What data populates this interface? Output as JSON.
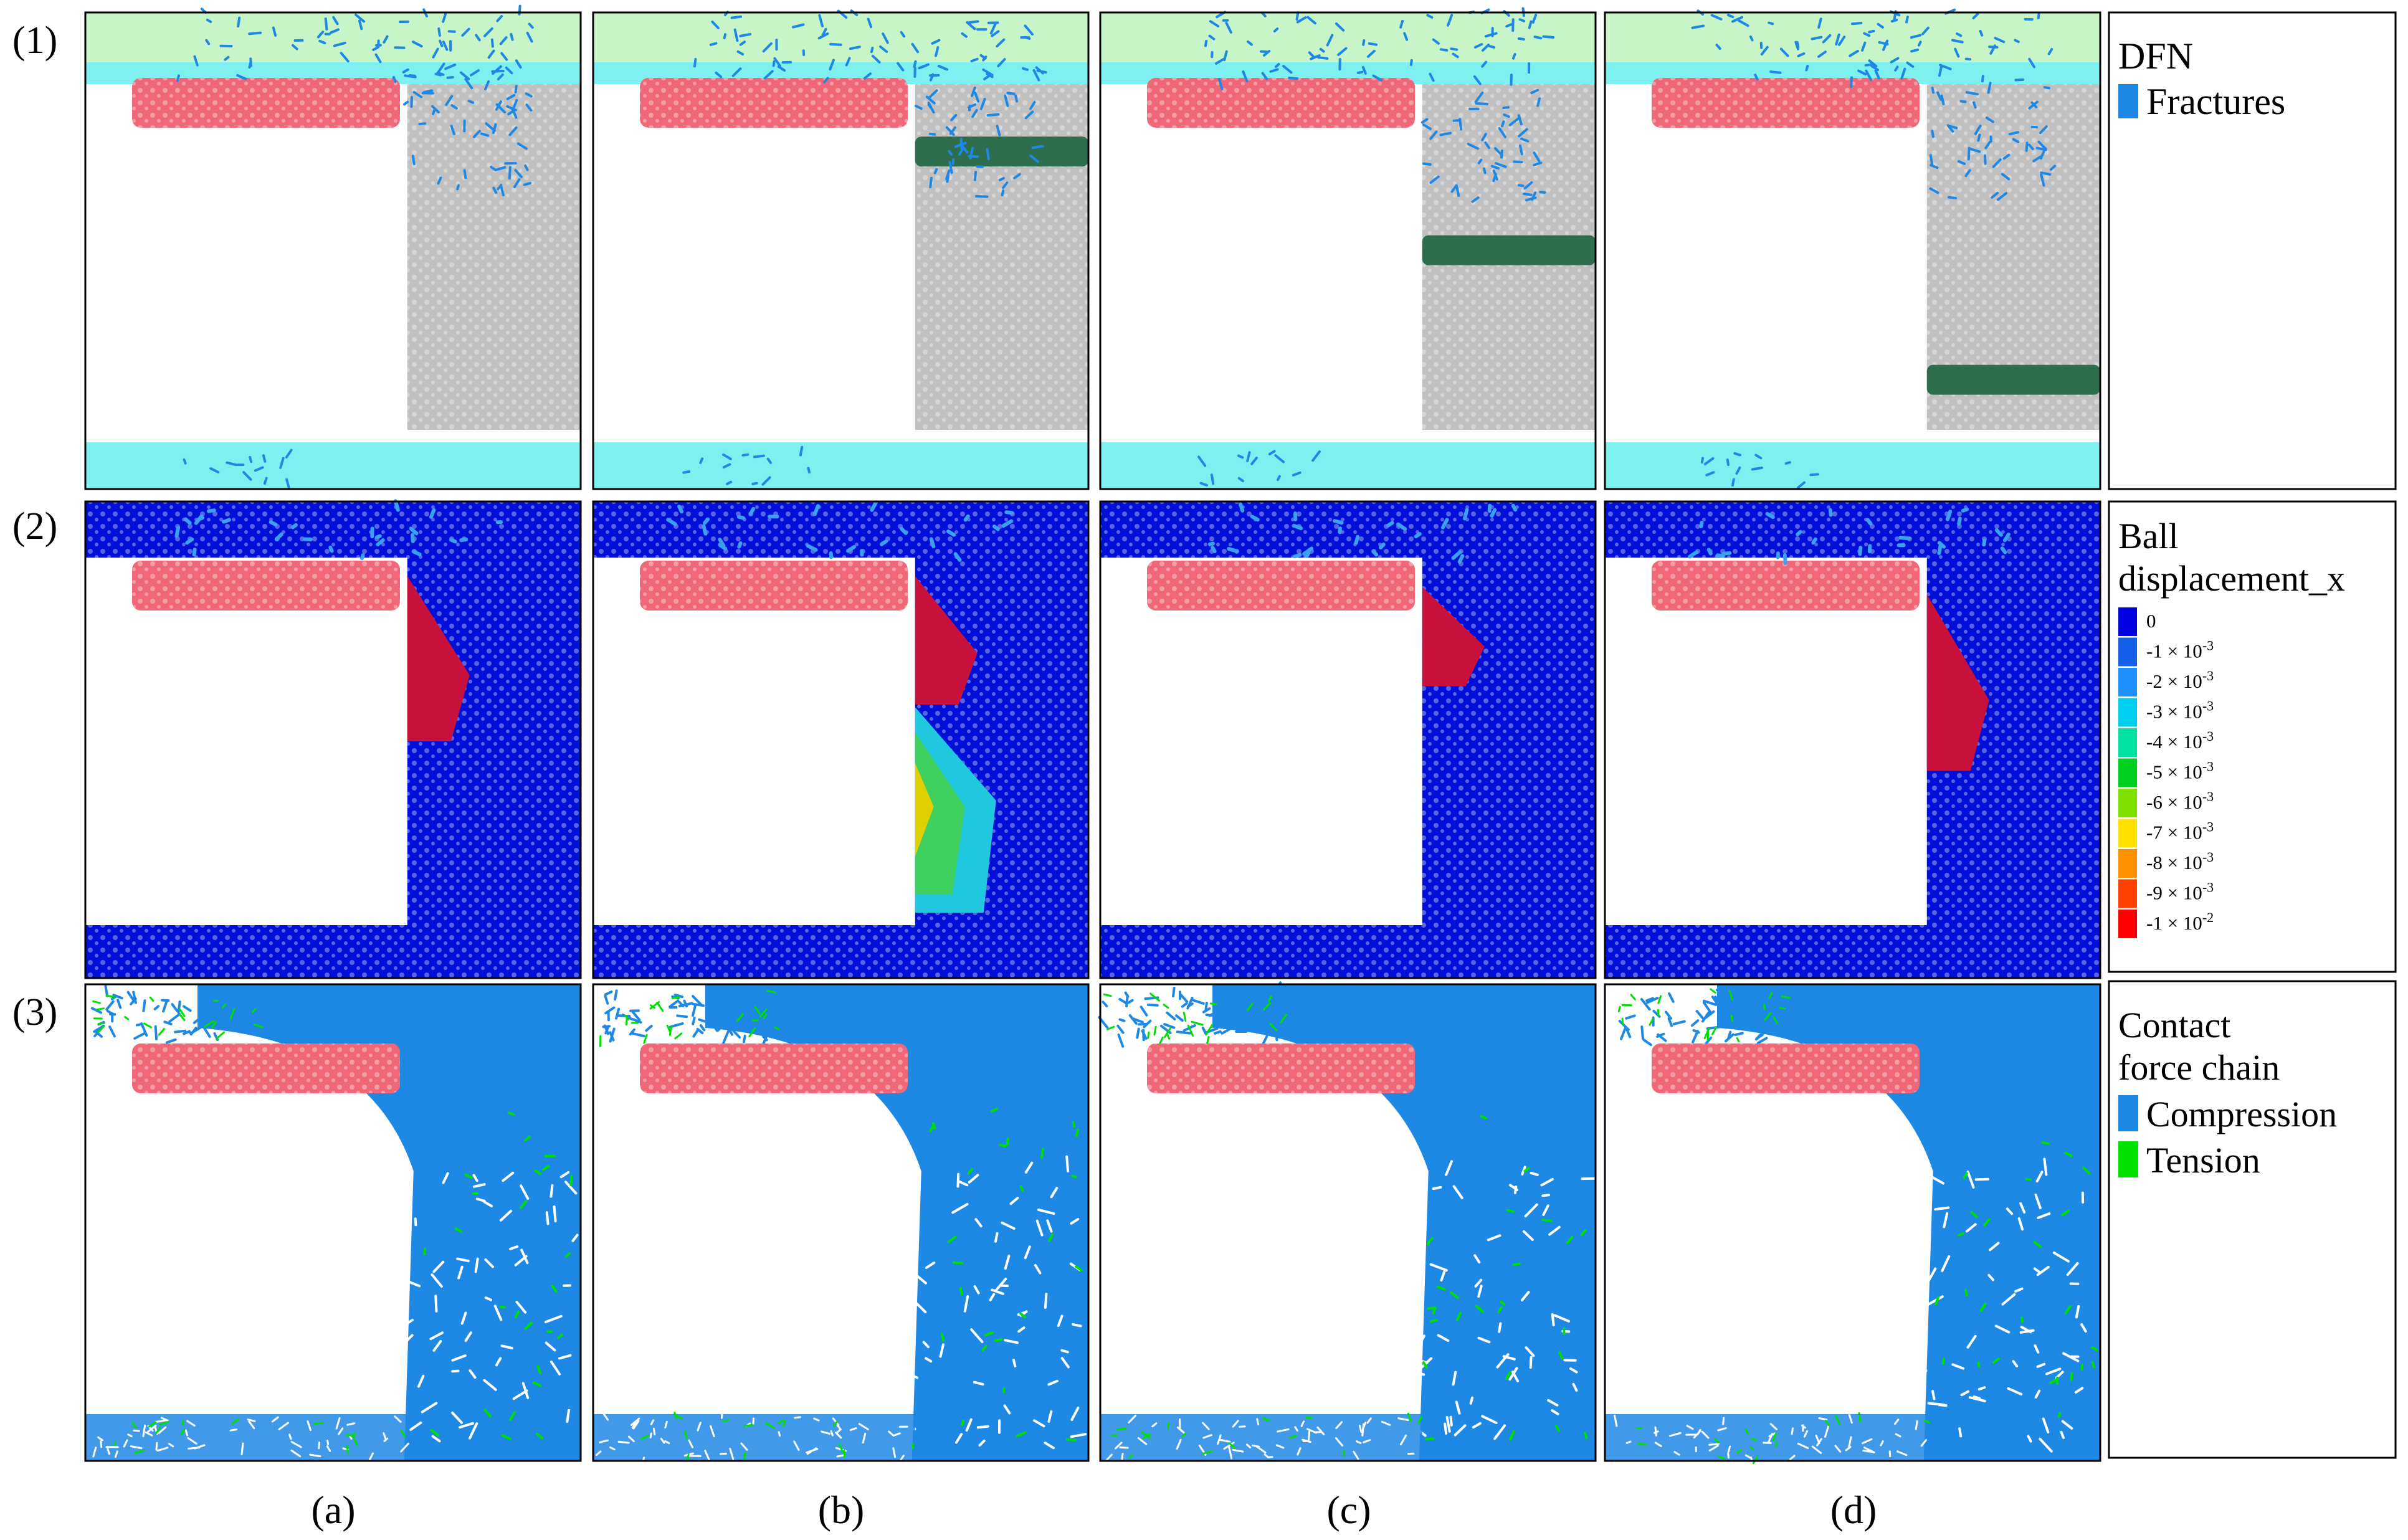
{
  "rows": [
    {
      "label": "(1)",
      "legend": {
        "title_lines": [
          "DFN"
        ],
        "entries": [
          {
            "name": "Fractures",
            "color": "#1e88e5"
          }
        ]
      }
    },
    {
      "label": "(2)",
      "legend": {
        "title_lines": [
          "Ball",
          "displacement_x"
        ],
        "scale": [
          {
            "text": "0",
            "color": "#0000e0"
          },
          {
            "text": "-1 × 10-3",
            "base": "-1 × 10",
            "exp": "-3",
            "color": "#1560e8"
          },
          {
            "text": "-2 × 10-3",
            "base": "-2 × 10",
            "exp": "-3",
            "color": "#1e90ff"
          },
          {
            "text": "-3 × 10-3",
            "base": "-3 × 10",
            "exp": "-3",
            "color": "#00d0f0"
          },
          {
            "text": "-4 × 10-3",
            "base": "-4 × 10",
            "exp": "-3",
            "color": "#00e0a0"
          },
          {
            "text": "-5 × 10-3",
            "base": "-5 × 10",
            "exp": "-3",
            "color": "#00d020"
          },
          {
            "text": "-6 × 10-3",
            "base": "-6 × 10",
            "exp": "-3",
            "color": "#80e000"
          },
          {
            "text": "-7 × 10-3",
            "base": "-7 × 10",
            "exp": "-3",
            "color": "#ffe000"
          },
          {
            "text": "-8 × 10-3",
            "base": "-8 × 10",
            "exp": "-3",
            "color": "#ff9000"
          },
          {
            "text": "-9 × 10-3",
            "base": "-9 × 10",
            "exp": "-3",
            "color": "#ff4000"
          },
          {
            "text": "-1 × 10-2",
            "base": "-1 × 10",
            "exp": "-2",
            "color": "#ff0000"
          }
        ]
      }
    },
    {
      "label": "(3)",
      "legend": {
        "title_lines": [
          "Contact",
          "force chain"
        ],
        "entries": [
          {
            "name": "Compression",
            "color": "#1e88e5"
          },
          {
            "name": "Tension",
            "color": "#00e000"
          }
        ]
      }
    }
  ],
  "columns": [
    {
      "label": "(a)",
      "band_level": null
    },
    {
      "label": "(b)",
      "band_level": 0.14
    },
    {
      "label": "(c)",
      "band_level": 0.46
    },
    {
      "label": "(d)",
      "band_level": 0.88
    }
  ],
  "colors": {
    "top_layer": "#c8f5c8",
    "cyan_layer": "#7ff0f0",
    "rock": "#c0c0c0",
    "pink": "#f06878",
    "band": "#2e6e4e",
    "disp_base": "#0010d8",
    "disp_red": "#c8103c",
    "fracture": "#1e88e5",
    "compression": "#1e88e5",
    "tension": "#00e000"
  }
}
